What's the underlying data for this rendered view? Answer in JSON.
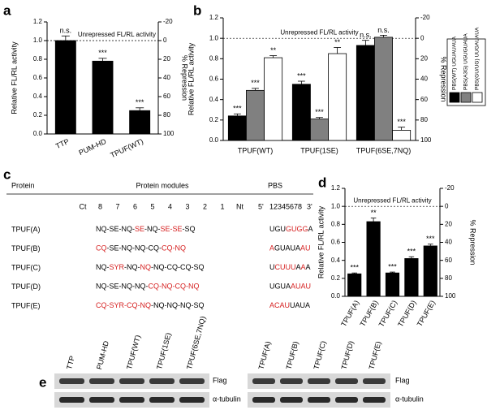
{
  "chart_data": [
    {
      "panel": "a",
      "type": "bar",
      "categories": [
        "TTP",
        "PUM-HD",
        "TPUF(WT)"
      ],
      "series": [
        {
          "color": "#000000",
          "values": [
            1.0,
            0.78,
            0.25
          ],
          "errors": [
            0.05,
            0.03,
            0.03
          ],
          "significance": [
            "n.s.",
            "***",
            "***"
          ]
        }
      ],
      "ylabel": "Relative FL/RL activity",
      "y2label": "% Repression",
      "ylim": [
        0,
        1.2
      ],
      "yticks": [
        {
          "value": 0,
          "label": "0.0"
        },
        0.2,
        0.4,
        0.6,
        0.8,
        {
          "value": 1,
          "label": "1.0"
        },
        1.2
      ],
      "y2lim": [
        100,
        -20
      ],
      "y2ticks": [
        100,
        80,
        60,
        40,
        20,
        0,
        -20
      ],
      "reference_line": {
        "value": 1,
        "label": "Unrepressed FL/RL activity"
      }
    },
    {
      "panel": "b",
      "type": "bar",
      "categories": [
        "TPUF(WT)",
        "TPUF(1SE)",
        "TPUF(6SE,7NQ)"
      ],
      "series": [
        {
          "name": "PBS(WT) UGUAUAUA",
          "color": "#000000",
          "values": [
            0.24,
            0.55,
            0.93
          ],
          "errors": [
            0.02,
            0.03,
            0.05
          ],
          "significance": [
            "***",
            "***",
            "n.s."
          ]
        },
        {
          "name": "PBS(A3G) UGUGUAUA",
          "color": "#808080",
          "values": [
            0.49,
            0.21,
            1.01
          ],
          "errors": [
            0.02,
            0.015,
            0.02
          ],
          "significance": [
            "***",
            "***",
            "n.s."
          ]
        },
        {
          "name": "PBS(GU/UG) UUGAUAUA",
          "color": "#ffffff",
          "values": [
            0.81,
            0.85,
            0.1
          ],
          "errors": [
            0.02,
            0.06,
            0.03
          ],
          "significance": [
            "**",
            "**",
            "***"
          ]
        }
      ],
      "ylabel": "Relative FL/RL activity",
      "y2label": "% Repression",
      "ylim": [
        0,
        1.2
      ],
      "yticks": [
        {
          "value": 0,
          "label": "0.0"
        },
        0.2,
        0.4,
        0.6,
        0.8,
        {
          "value": 1,
          "label": "1.0"
        },
        1.2
      ],
      "y2lim": [
        100,
        -20
      ],
      "y2ticks": [
        100,
        80,
        60,
        40,
        20,
        0,
        -20
      ],
      "reference_line": {
        "value": 1,
        "label": "Unrepressed FL/RL activity"
      }
    },
    {
      "panel": "d",
      "type": "bar",
      "categories": [
        "TPUF(A)",
        "TPUF(B)",
        "TPUF(C)",
        "TPUF(D)",
        "TPUF(E)"
      ],
      "series": [
        {
          "color": "#000000",
          "values": [
            0.25,
            0.83,
            0.26,
            0.42,
            0.56
          ],
          "errors": [
            0.01,
            0.04,
            0.01,
            0.02,
            0.02
          ],
          "significance": [
            "***",
            "**",
            "***",
            "***",
            "***"
          ]
        }
      ],
      "ylabel": "Relative FL/RL activity",
      "y2label": "% Repression",
      "ylim": [
        0,
        1.2
      ],
      "yticks": [
        {
          "value": 0,
          "label": "0.0"
        },
        0.2,
        0.4,
        0.6,
        0.8,
        {
          "value": 1,
          "label": "1.0"
        },
        1.2
      ],
      "y2lim": [
        100,
        -20
      ],
      "y2ticks": [
        100,
        80,
        60,
        40,
        20,
        0,
        -20
      ],
      "reference_line": {
        "value": 1,
        "label": "Unrepressed FL/RL activity"
      }
    }
  ],
  "panel_c": {
    "panel": "c",
    "headers": [
      "Protein",
      "Protein modules",
      "PBS"
    ],
    "module_positions": [
      "Ct",
      8,
      7,
      6,
      5,
      4,
      3,
      2,
      1,
      "Nt"
    ],
    "pbs_positions": [
      "5'",
      "12345678",
      "3'"
    ],
    "rows": [
      {
        "protein": "TPUF(A)",
        "modules": [
          {
            "text": "NQ-SE-NQ-",
            "color": "#000000"
          },
          {
            "text": "SE",
            "color": "#d62020"
          },
          {
            "text": "-NQ-",
            "color": "#000000"
          },
          {
            "text": "SE-SE",
            "color": "#d62020"
          },
          {
            "text": "-SQ",
            "color": "#000000"
          }
        ],
        "pbs": [
          {
            "text": "UGU",
            "color": "#000000"
          },
          {
            "text": "GUGG",
            "color": "#d62020"
          },
          {
            "text": "A",
            "color": "#000000"
          }
        ]
      },
      {
        "protein": "TPUF(B)",
        "modules": [
          {
            "text": "CQ",
            "color": "#d62020"
          },
          {
            "text": "-SE-NQ-NQ-CQ-",
            "color": "#000000"
          },
          {
            "text": "CQ-NQ",
            "color": "#d62020"
          }
        ],
        "pbs": [
          {
            "text": "A",
            "color": "#d62020"
          },
          {
            "text": "GUAUA",
            "color": "#000000"
          },
          {
            "text": "AU",
            "color": "#d62020"
          }
        ]
      },
      {
        "protein": "TPUF(C)",
        "modules": [
          {
            "text": "NQ-",
            "color": "#000000"
          },
          {
            "text": "SYR",
            "color": "#d62020"
          },
          {
            "text": "-NQ-",
            "color": "#000000"
          },
          {
            "text": "NQ",
            "color": "#d62020"
          },
          {
            "text": "-NQ-CQ-CQ-SQ",
            "color": "#000000"
          }
        ],
        "pbs": [
          {
            "text": "U",
            "color": "#000000"
          },
          {
            "text": "CUUU",
            "color": "#d62020"
          },
          {
            "text": "A",
            "color": "#000000"
          },
          {
            "text": "A",
            "color": "#d62020"
          },
          {
            "text": "A",
            "color": "#000000"
          }
        ]
      },
      {
        "protein": "TPUF(D)",
        "modules": [
          {
            "text": "NQ-SE-NQ-NQ-",
            "color": "#000000"
          },
          {
            "text": "CQ-NQ-CQ-NQ",
            "color": "#d62020"
          }
        ],
        "pbs": [
          {
            "text": "UGUA",
            "color": "#000000"
          },
          {
            "text": "AUAU",
            "color": "#d62020"
          }
        ]
      },
      {
        "protein": "TPUF(E)",
        "modules": [
          {
            "text": "CQ-SYR-CQ-NQ",
            "color": "#d62020"
          },
          {
            "text": "-NQ-NQ-NQ-SQ",
            "color": "#000000"
          }
        ],
        "pbs": [
          {
            "text": "ACAU",
            "color": "#d62020"
          },
          {
            "text": "UAUA",
            "color": "#000000"
          }
        ]
      }
    ]
  },
  "panel_e": {
    "panel": "e",
    "blots": [
      {
        "lanes": [
          "TTP",
          "PUM-HD",
          "TPUF(WT)",
          "TPUF(1SE)",
          "TPUF(6SE,7NQ)"
        ],
        "rows": [
          "Flag",
          "α-tubulin"
        ]
      },
      {
        "lanes": [
          "TPUF(A)",
          "TPUF(B)",
          "TPUF(C)",
          "TPUF(D)",
          "TPUF(E)"
        ],
        "rows": [
          "Flag",
          "α-tubulin"
        ]
      }
    ]
  }
}
